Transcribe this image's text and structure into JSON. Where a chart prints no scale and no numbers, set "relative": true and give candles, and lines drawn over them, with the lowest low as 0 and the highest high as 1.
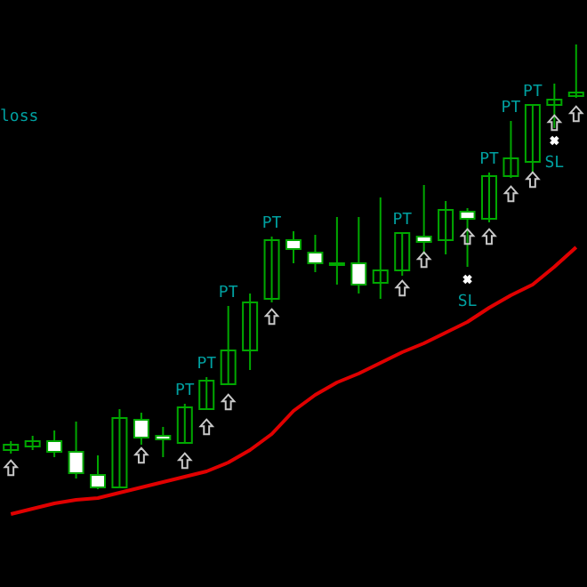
{
  "chart_data": {
    "type": "candlestick",
    "relative": true,
    "tick_labels": false,
    "categories": [
      null,
      null,
      null,
      null,
      null,
      null,
      null,
      null,
      null,
      null,
      null,
      null,
      null,
      null,
      null,
      null,
      null,
      null,
      null,
      null,
      null,
      null,
      null,
      null,
      null,
      null,
      null
    ],
    "ohlc": [
      [
        0.088,
        0.108,
        0.08,
        0.1
      ],
      [
        0.096,
        0.12,
        0.088,
        0.108
      ],
      [
        0.108,
        0.132,
        0.072,
        0.084
      ],
      [
        0.084,
        0.152,
        0.024,
        0.036
      ],
      [
        0.032,
        0.076,
        0,
        0.004
      ],
      [
        0.004,
        0.18,
        0.004,
        0.16
      ],
      [
        0.156,
        0.172,
        0.1,
        0.116
      ],
      [
        0.12,
        0.14,
        0.072,
        0.112
      ],
      [
        0.104,
        0.192,
        0.104,
        0.184
      ],
      [
        0.18,
        0.252,
        0.18,
        0.244
      ],
      [
        0.236,
        0.412,
        0.236,
        0.312
      ],
      [
        0.312,
        0.44,
        0.268,
        0.42
      ],
      [
        0.428,
        0.568,
        0.42,
        0.56
      ],
      [
        0.56,
        0.58,
        0.508,
        0.54
      ],
      [
        0.532,
        0.572,
        0.488,
        0.508
      ],
      [
        0.508,
        0.612,
        0.46,
        0.504
      ],
      [
        0.508,
        0.612,
        0.44,
        0.46
      ],
      [
        0.464,
        0.656,
        0.428,
        0.492
      ],
      [
        0.492,
        0.576,
        0.48,
        0.576
      ],
      [
        0.568,
        0.684,
        0.528,
        0.556
      ],
      [
        0.56,
        0.648,
        0.528,
        0.628
      ],
      [
        0.624,
        0.632,
        0.5,
        0.608
      ],
      [
        0.608,
        0.712,
        0.6,
        0.704
      ],
      [
        0.704,
        0.828,
        0.7,
        0.744
      ],
      [
        0.736,
        0.864,
        0.712,
        0.864
      ],
      [
        0.864,
        0.912,
        0.812,
        0.876
      ],
      [
        0.884,
        1,
        0.88,
        0.892
      ]
    ],
    "color": "#00a800",
    "colors": [
      "#00a800",
      "#00a800",
      "#ffffff",
      "#ffffff",
      "#ffffff",
      "#00a800",
      "#ffffff",
      "#ffffff",
      "#00a800",
      "#00a800",
      "#00a800",
      "#00a800",
      "#00a800",
      "#ffffff",
      "#ffffff",
      "#ffffff",
      "#ffffff",
      "#00a800",
      "#00a800",
      "#ffffff",
      "#00a800",
      "#ffffff",
      "#00a800",
      "#00a800",
      "#00a800",
      "#00a800",
      "#00a800"
    ],
    "value_labels": [
      null,
      null,
      null,
      null,
      null,
      null,
      null,
      null,
      "PT",
      "PT",
      "PT",
      null,
      "PT",
      null,
      null,
      null,
      null,
      null,
      "PT",
      null,
      null,
      "SL",
      "PT",
      "PT",
      "PT",
      "SL",
      null
    ],
    "series": [
      {
        "type": "line",
        "color": "#e00000",
        "values": [
          -0.056,
          -0.044,
          -0.032,
          -0.024,
          -0.02,
          -0.008,
          0.004,
          0.016,
          0.028,
          0.04,
          0.06,
          0.088,
          0.124,
          0.176,
          0.212,
          0.24,
          0.26,
          0.284,
          0.308,
          0.328,
          0.352,
          0.376,
          0.408,
          0.436,
          0.46,
          0.5,
          0.544
        ]
      }
    ],
    "annotations": [
      "loss"
    ]
  }
}
